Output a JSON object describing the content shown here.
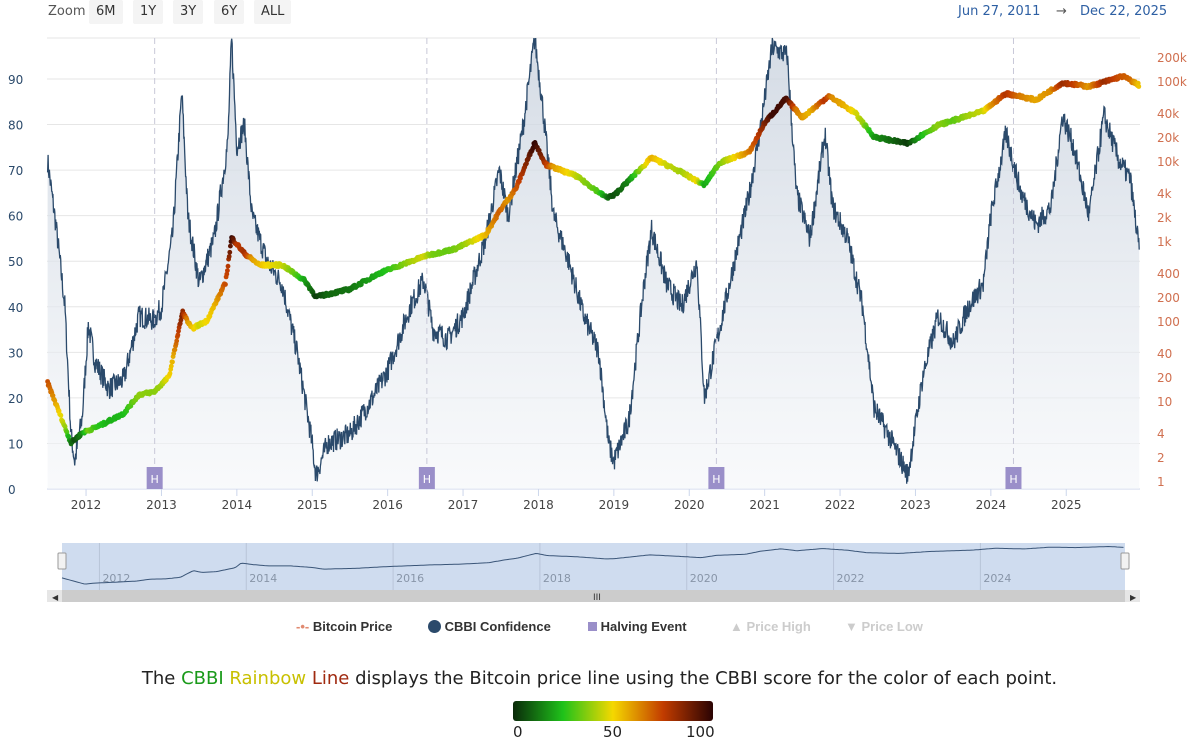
{
  "toolbar": {
    "zoom_label": "Zoom",
    "buttons": [
      "6M",
      "1Y",
      "3Y",
      "6Y",
      "ALL"
    ],
    "range_from": "Jun 27, 2011",
    "range_arrow": "→",
    "range_to": "Dec 22, 2025"
  },
  "legend": [
    {
      "label": "Bitcoin Price",
      "active": true
    },
    {
      "label": "CBBI Confidence",
      "active": true
    },
    {
      "label": "Halving Event",
      "active": true
    },
    {
      "label": "Price High",
      "active": false
    },
    {
      "label": "Price Low",
      "active": false
    }
  ],
  "description": {
    "pre": "The ",
    "cbbi": "CBBI ",
    "rainbow": "Rainbow ",
    "line": "Line",
    "post": " displays the Bitcoin price line using the CBBI score for the color of each point."
  },
  "colorbar": {
    "ticks": [
      "0",
      "50",
      "100"
    ],
    "stops": [
      "#0a2a0a",
      "#1fc21a",
      "#f5d800",
      "#c23c00",
      "#2a0303"
    ]
  },
  "colors": {
    "cbbi_line": "#2b4a6b",
    "halving": "#9a8fc9",
    "price_axis": "#d07050"
  },
  "chart_data": {
    "type": "line",
    "x_range": [
      "2011-06-27",
      "2025-12-22"
    ],
    "x_ticks": [
      "2012",
      "2013",
      "2014",
      "2015",
      "2016",
      "2017",
      "2018",
      "2019",
      "2020",
      "2021",
      "2022",
      "2023",
      "2024",
      "2025"
    ],
    "y_left": {
      "ticks": [
        "0",
        "10",
        "20",
        "30",
        "40",
        "50",
        "60",
        "70",
        "80",
        "90"
      ],
      "range": [
        0,
        100
      ]
    },
    "y_right": {
      "scale": "log",
      "ticks": [
        "1",
        "2",
        "4",
        "10",
        "20",
        "40",
        "100",
        "200",
        "400",
        "1k",
        "2k",
        "4k",
        "10k",
        "20k",
        "40k",
        "100k",
        "200k"
      ],
      "tick_values": [
        1,
        2,
        4,
        10,
        20,
        40,
        100,
        200,
        400,
        1000,
        2000,
        4000,
        10000,
        20000,
        40000,
        100000,
        200000
      ]
    },
    "grid": true,
    "halvings": {
      "label": "H",
      "dates": [
        2012.91,
        2016.52,
        2020.36,
        2024.3
      ]
    },
    "navigator_ticks": [
      "2012",
      "2014",
      "2016",
      "2018",
      "2020",
      "2022",
      "2024"
    ],
    "series": [
      {
        "name": "CBBI Confidence",
        "points": [
          [
            2011.49,
            72
          ],
          [
            2011.6,
            58
          ],
          [
            2011.72,
            40
          ],
          [
            2011.8,
            12
          ],
          [
            2011.85,
            6
          ],
          [
            2011.95,
            16
          ],
          [
            2012.03,
            36
          ],
          [
            2012.12,
            28
          ],
          [
            2012.3,
            22
          ],
          [
            2012.5,
            24
          ],
          [
            2012.7,
            38
          ],
          [
            2012.9,
            37
          ],
          [
            2013.0,
            40
          ],
          [
            2013.15,
            56
          ],
          [
            2013.27,
            87
          ],
          [
            2013.35,
            60
          ],
          [
            2013.5,
            45
          ],
          [
            2013.7,
            55
          ],
          [
            2013.88,
            76
          ],
          [
            2013.93,
            99
          ],
          [
            2014.0,
            75
          ],
          [
            2014.1,
            80
          ],
          [
            2014.2,
            60
          ],
          [
            2014.4,
            50
          ],
          [
            2014.6,
            45
          ],
          [
            2014.8,
            30
          ],
          [
            2014.98,
            12
          ],
          [
            2015.05,
            3
          ],
          [
            2015.2,
            10
          ],
          [
            2015.5,
            12
          ],
          [
            2015.8,
            20
          ],
          [
            2016.0,
            26
          ],
          [
            2016.3,
            40
          ],
          [
            2016.48,
            46
          ],
          [
            2016.6,
            35
          ],
          [
            2016.8,
            33
          ],
          [
            2017.0,
            38
          ],
          [
            2017.3,
            55
          ],
          [
            2017.48,
            70
          ],
          [
            2017.6,
            60
          ],
          [
            2017.8,
            80
          ],
          [
            2017.95,
            99
          ],
          [
            2018.05,
            85
          ],
          [
            2018.2,
            60
          ],
          [
            2018.4,
            50
          ],
          [
            2018.6,
            38
          ],
          [
            2018.8,
            30
          ],
          [
            2018.93,
            10
          ],
          [
            2019.0,
            6
          ],
          [
            2019.2,
            15
          ],
          [
            2019.4,
            45
          ],
          [
            2019.5,
            57
          ],
          [
            2019.7,
            45
          ],
          [
            2019.9,
            40
          ],
          [
            2020.1,
            50
          ],
          [
            2020.2,
            20
          ],
          [
            2020.4,
            35
          ],
          [
            2020.6,
            50
          ],
          [
            2020.8,
            65
          ],
          [
            2020.95,
            80
          ],
          [
            2021.1,
            97
          ],
          [
            2021.3,
            95
          ],
          [
            2021.42,
            65
          ],
          [
            2021.6,
            55
          ],
          [
            2021.8,
            78
          ],
          [
            2021.9,
            62
          ],
          [
            2022.1,
            55
          ],
          [
            2022.3,
            40
          ],
          [
            2022.45,
            18
          ],
          [
            2022.7,
            10
          ],
          [
            2022.9,
            3
          ],
          [
            2023.1,
            25
          ],
          [
            2023.3,
            38
          ],
          [
            2023.5,
            32
          ],
          [
            2023.7,
            40
          ],
          [
            2023.9,
            45
          ],
          [
            2024.0,
            60
          ],
          [
            2024.2,
            78
          ],
          [
            2024.4,
            65
          ],
          [
            2024.6,
            58
          ],
          [
            2024.8,
            62
          ],
          [
            2024.95,
            82
          ],
          [
            2025.1,
            75
          ],
          [
            2025.3,
            60
          ],
          [
            2025.5,
            82
          ],
          [
            2025.7,
            72
          ],
          [
            2025.85,
            68
          ],
          [
            2025.97,
            52
          ]
        ]
      },
      {
        "name": "Bitcoin Price",
        "points": [
          [
            2011.49,
            17
          ],
          [
            2011.8,
            3
          ],
          [
            2011.95,
            4
          ],
          [
            2012.2,
            5
          ],
          [
            2012.5,
            7
          ],
          [
            2012.7,
            12
          ],
          [
            2012.9,
            13
          ],
          [
            2013.1,
            20
          ],
          [
            2013.28,
            130
          ],
          [
            2013.4,
            80
          ],
          [
            2013.6,
            100
          ],
          [
            2013.85,
            300
          ],
          [
            2013.93,
            1100
          ],
          [
            2014.1,
            700
          ],
          [
            2014.3,
            500
          ],
          [
            2014.6,
            500
          ],
          [
            2014.9,
            320
          ],
          [
            2015.05,
            200
          ],
          [
            2015.5,
            250
          ],
          [
            2015.9,
            400
          ],
          [
            2016.5,
            650
          ],
          [
            2016.9,
            800
          ],
          [
            2017.3,
            1200
          ],
          [
            2017.5,
            2500
          ],
          [
            2017.7,
            4500
          ],
          [
            2017.95,
            17000
          ],
          [
            2018.1,
            9000
          ],
          [
            2018.5,
            6500
          ],
          [
            2018.9,
            3500
          ],
          [
            2019.0,
            3700
          ],
          [
            2019.5,
            11000
          ],
          [
            2019.9,
            7200
          ],
          [
            2020.2,
            5000
          ],
          [
            2020.4,
            9500
          ],
          [
            2020.8,
            13000
          ],
          [
            2021.0,
            30000
          ],
          [
            2021.28,
            60000
          ],
          [
            2021.5,
            35000
          ],
          [
            2021.85,
            65000
          ],
          [
            2022.2,
            40000
          ],
          [
            2022.45,
            20000
          ],
          [
            2022.9,
            16500
          ],
          [
            2023.3,
            28000
          ],
          [
            2023.9,
            42000
          ],
          [
            2024.2,
            70000
          ],
          [
            2024.6,
            58000
          ],
          [
            2024.95,
            95000
          ],
          [
            2025.3,
            85000
          ],
          [
            2025.75,
            115000
          ],
          [
            2025.97,
            88000
          ]
        ]
      }
    ]
  }
}
